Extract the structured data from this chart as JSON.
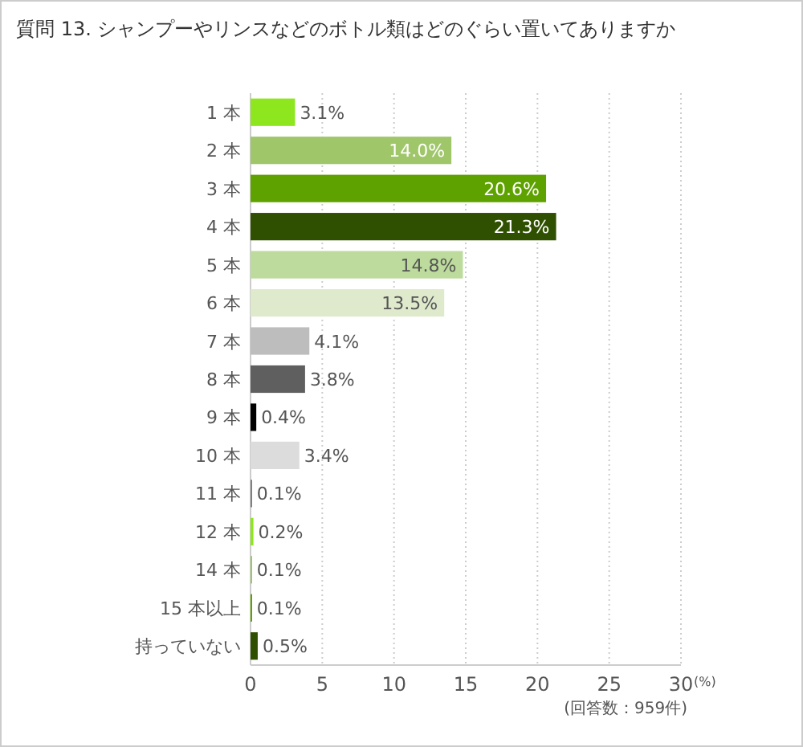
{
  "chart_data": {
    "type": "bar",
    "orientation": "horizontal",
    "title": "質問 13. シャンプーやリンスなどのボトル類はどのぐらい置いてありますか",
    "xlabel": "(%)",
    "annotations": [
      "(回答数：959件)"
    ],
    "categories": [
      "1 本",
      "2 本",
      "3 本",
      "4 本",
      "5 本",
      "6 本",
      "7 本",
      "8 本",
      "9 本",
      "10 本",
      "11 本",
      "12 本",
      "14 本",
      "15 本以上",
      "持っていない"
    ],
    "values": [
      3.1,
      14.0,
      20.6,
      21.3,
      14.8,
      13.5,
      4.1,
      3.8,
      0.4,
      3.4,
      0.1,
      0.2,
      0.1,
      0.1,
      0.5
    ],
    "value_labels": [
      "3.1%",
      "14.0%",
      "20.6%",
      "21.3%",
      "14.8%",
      "13.5%",
      "4.1%",
      "3.8%",
      "0.4%",
      "3.4%",
      "0.1%",
      "0.2%",
      "0.1%",
      "0.1%",
      "0.5%"
    ],
    "colors": [
      "#8ee61e",
      "#a0c66a",
      "#5ea200",
      "#2f5000",
      "#bcdb9c",
      "#dfeacd",
      "#bdbdbd",
      "#5f5f5f",
      "#000000",
      "#dcdcdc",
      "#808080",
      "#8ee61e",
      "#a0c66a",
      "#5ea200",
      "#2f5000"
    ],
    "xlim": [
      0,
      30
    ],
    "xticks": [
      0,
      5,
      10,
      15,
      20,
      25,
      30
    ],
    "grid": "x"
  }
}
